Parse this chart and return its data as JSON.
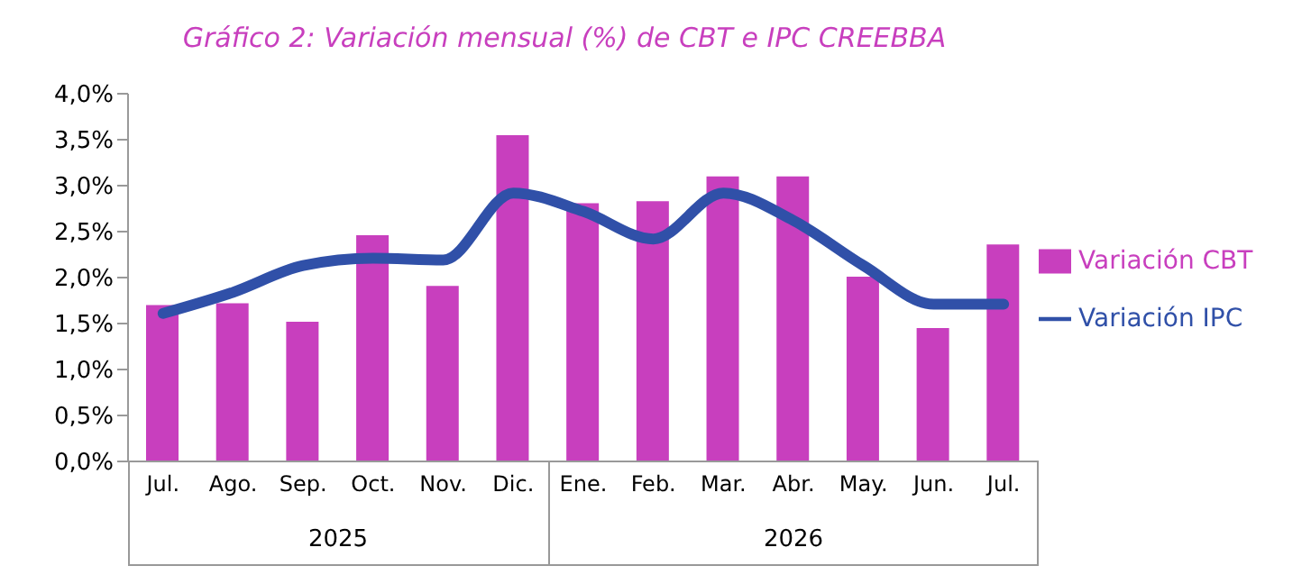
{
  "chart_data": {
    "type": "bar",
    "title": "Gráfico 2: Variación mensual (%) de CBT e IPC CREEBBA",
    "categories": [
      "Jul.",
      "Ago.",
      "Sep.",
      "Oct.",
      "Nov.",
      "Dic.",
      "Ene.",
      "Feb.",
      "Mar.",
      "Abr.",
      "May.",
      "Jun.",
      "Jul."
    ],
    "series": [
      {
        "name": "Variación CBT",
        "color": "#c83fbe",
        "values": [
          1.7,
          1.72,
          1.52,
          2.46,
          1.91,
          3.55,
          2.81,
          2.83,
          3.1,
          3.1,
          2.01,
          1.45,
          2.36
        ]
      },
      {
        "name": "Variación IPC",
        "type": "line",
        "color": "#3050a8",
        "values": [
          1.61,
          1.84,
          2.13,
          2.21,
          2.19,
          2.92,
          2.72,
          2.42,
          2.92,
          2.62,
          2.13,
          1.71,
          1.71
        ]
      }
    ],
    "ylim": [
      0,
      4
    ],
    "yticks": [
      {
        "value": 0,
        "label": "0,0%"
      },
      {
        "value": 0.5,
        "label": "0,5%"
      },
      {
        "value": 1,
        "label": "1,0%"
      },
      {
        "value": 1.5,
        "label": "1,5%"
      },
      {
        "value": 2,
        "label": "2,0%"
      },
      {
        "value": 2.5,
        "label": "2,5%"
      },
      {
        "value": 3,
        "label": "3,0%"
      },
      {
        "value": 3.5,
        "label": "3,5%"
      },
      {
        "value": 4,
        "label": "4,0%"
      }
    ],
    "annotations": [
      "2025",
      "2026"
    ],
    "grid": false,
    "legend": "right",
    "marker": "none",
    "line_style": "solid"
  }
}
